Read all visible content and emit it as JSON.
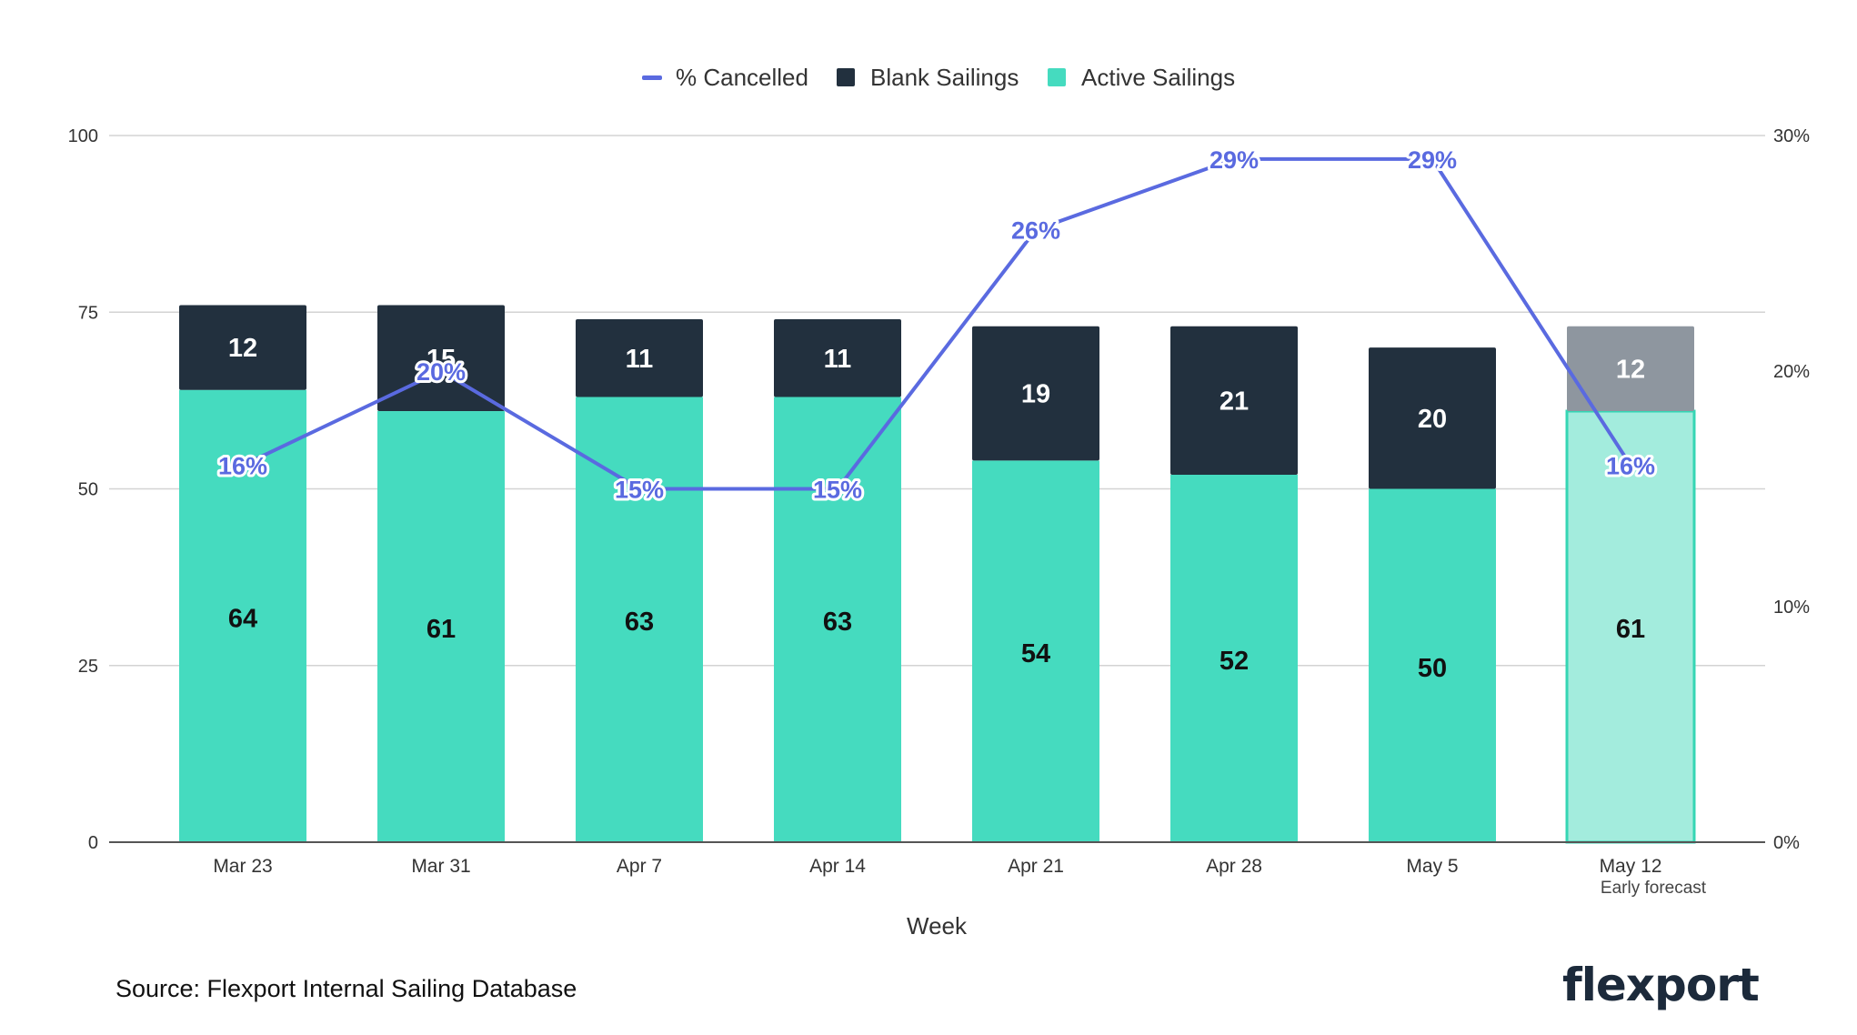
{
  "chart_data": {
    "type": "bar",
    "stacked": true,
    "title": "",
    "xlabel": "Week",
    "ylabel": "",
    "ylim": [
      0,
      100
    ],
    "y_ticks": [
      "0",
      "25",
      "50",
      "75",
      "100"
    ],
    "y2lim": [
      0,
      30
    ],
    "y2_ticks": [
      "0%",
      "10%",
      "20%",
      "30%"
    ],
    "categories": [
      "Mar 23",
      "Mar 31",
      "Apr 7",
      "Apr 14",
      "Apr 21",
      "Apr 28",
      "May 5",
      "May 12"
    ],
    "category_sublabels": [
      "",
      "",
      "",
      "",
      "",
      "",
      "",
      "Early forecast"
    ],
    "legend": [
      "% Cancelled",
      "Blank Sailings",
      "Active Sailings"
    ],
    "legend_position": "top-center",
    "series": [
      {
        "name": "Active Sailings",
        "type": "bar",
        "values": [
          64,
          61,
          63,
          63,
          54,
          52,
          50,
          61
        ],
        "color": "#45dbbf"
      },
      {
        "name": "Blank Sailings",
        "type": "bar",
        "values": [
          12,
          15,
          11,
          11,
          19,
          21,
          20,
          12
        ],
        "color": "#22303e"
      },
      {
        "name": "% Cancelled",
        "type": "line",
        "axis": "right",
        "values": [
          16,
          20,
          15,
          15,
          26,
          29,
          29,
          16
        ],
        "labels": [
          "16%",
          "20%",
          "15%",
          "15%",
          "26%",
          "29%",
          "29%",
          "16%"
        ],
        "color": "#5a6ae0"
      }
    ],
    "forecast_colors": {
      "active": "#a3ecdd",
      "active_border": "#35d6b4",
      "blank": "#8e969f"
    }
  },
  "footer": {
    "source": "Source: Flexport Internal Sailing Database",
    "logo": "flexport"
  }
}
